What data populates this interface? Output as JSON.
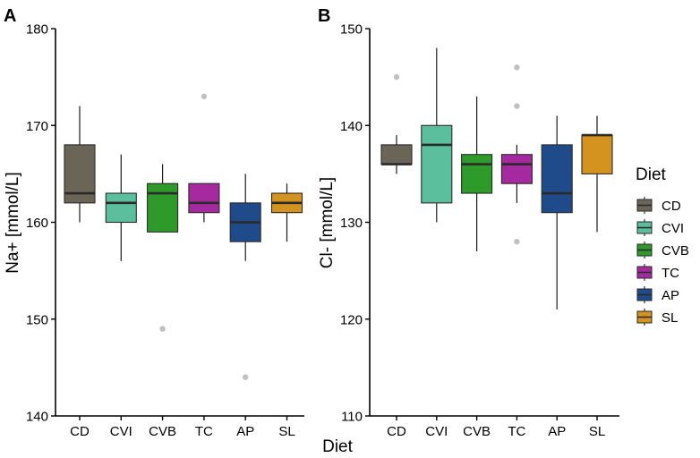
{
  "figure": {
    "shared_xlabel": "Diet",
    "legend": {
      "title": "Diet",
      "entries": [
        {
          "label": "CD",
          "color": "#6b6558"
        },
        {
          "label": "CVI",
          "color": "#5bbf9e"
        },
        {
          "label": "CVB",
          "color": "#2e9a2a"
        },
        {
          "label": "TC",
          "color": "#a52aa0"
        },
        {
          "label": "AP",
          "color": "#1f4b8a"
        },
        {
          "label": "SL",
          "color": "#d4921e"
        }
      ]
    }
  },
  "chart_data": [
    {
      "type": "box",
      "panel_label": "A",
      "title": "",
      "xlabel": "",
      "ylabel": "Na+ [mmol/L]",
      "ylim": [
        140,
        180
      ],
      "yticks": [
        140,
        150,
        160,
        170,
        180
      ],
      "categories": [
        "CD",
        "CVI",
        "CVB",
        "TC",
        "AP",
        "SL"
      ],
      "boxes": [
        {
          "category": "CD",
          "whisker_low": 160,
          "q1": 162,
          "median": 163,
          "q3": 168,
          "whisker_high": 172,
          "outliers": []
        },
        {
          "category": "CVI",
          "whisker_low": 156,
          "q1": 160,
          "median": 162,
          "q3": 163,
          "whisker_high": 167,
          "outliers": []
        },
        {
          "category": "CVB",
          "whisker_low": 159,
          "q1": 159,
          "median": 163,
          "q3": 164,
          "whisker_high": 166,
          "outliers": [
            149
          ]
        },
        {
          "category": "TC",
          "whisker_low": 160,
          "q1": 161,
          "median": 162,
          "q3": 164,
          "whisker_high": 164,
          "outliers": [
            173
          ]
        },
        {
          "category": "AP",
          "whisker_low": 156,
          "q1": 158,
          "median": 160,
          "q3": 162,
          "whisker_high": 165,
          "outliers": [
            144
          ]
        },
        {
          "category": "SL",
          "whisker_low": 158,
          "q1": 161,
          "median": 162,
          "q3": 163,
          "whisker_high": 164,
          "outliers": []
        }
      ]
    },
    {
      "type": "box",
      "panel_label": "B",
      "title": "",
      "xlabel": "",
      "ylabel": "Cl- [mmol/L]",
      "ylim": [
        110,
        150
      ],
      "yticks": [
        110,
        120,
        130,
        140,
        150
      ],
      "categories": [
        "CD",
        "CVI",
        "CVB",
        "TC",
        "AP",
        "SL"
      ],
      "boxes": [
        {
          "category": "CD",
          "whisker_low": 135,
          "q1": 136,
          "median": 136,
          "q3": 138,
          "whisker_high": 139,
          "outliers": [
            145
          ]
        },
        {
          "category": "CVI",
          "whisker_low": 130,
          "q1": 132,
          "median": 138,
          "q3": 140,
          "whisker_high": 148,
          "outliers": []
        },
        {
          "category": "CVB",
          "whisker_low": 127,
          "q1": 133,
          "median": 136,
          "q3": 137,
          "whisker_high": 143,
          "outliers": []
        },
        {
          "category": "TC",
          "whisker_low": 132,
          "q1": 134,
          "median": 136,
          "q3": 137,
          "whisker_high": 138,
          "outliers": [
            146,
            142,
            128
          ]
        },
        {
          "category": "AP",
          "whisker_low": 121,
          "q1": 131,
          "median": 133,
          "q3": 138,
          "whisker_high": 141,
          "outliers": []
        },
        {
          "category": "SL",
          "whisker_low": 129,
          "q1": 135,
          "median": 139,
          "q3": 139,
          "whisker_high": 141,
          "outliers": []
        }
      ]
    }
  ]
}
